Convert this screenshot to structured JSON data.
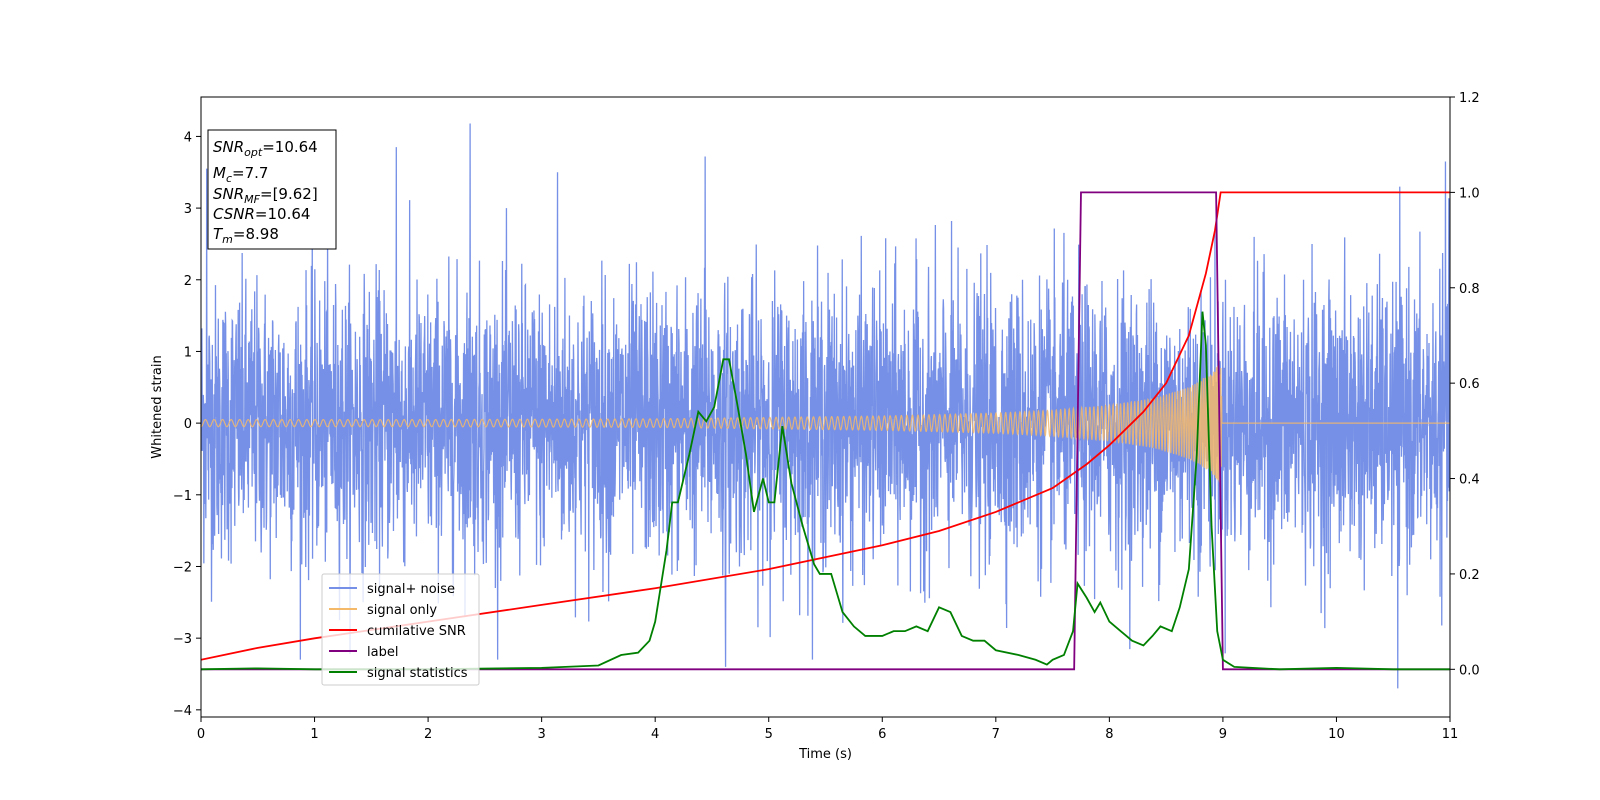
{
  "chart_data": {
    "type": "line",
    "xlabel": "Time (s)",
    "ylabel": "Whitened strain",
    "xlim": [
      0,
      11
    ],
    "ylim_left": [
      -4.1,
      4.55
    ],
    "ylim_right": [
      -0.1,
      1.2
    ],
    "x_ticks": [
      "0",
      "1",
      "2",
      "3",
      "4",
      "5",
      "6",
      "7",
      "8",
      "9",
      "10",
      "11"
    ],
    "y_ticks_left": [
      "−4",
      "−3",
      "−2",
      "−1",
      "0",
      "1",
      "2",
      "3",
      "4"
    ],
    "y_ticks_right": [
      "0.0",
      "0.2",
      "0.4",
      "0.6",
      "0.8",
      "1.0",
      "1.2"
    ],
    "y_tick_values_left": [
      -4,
      -3,
      -2,
      -1,
      0,
      1,
      2,
      3,
      4
    ],
    "y_tick_values_right": [
      0,
      0.2,
      0.4,
      0.6,
      0.8,
      1.0,
      1.2
    ],
    "annotation": {
      "snr_opt": "SNR",
      "snr_opt_sub": "opt",
      "snr_opt_val": "=10.64",
      "mc": "M",
      "mc_sub": "c",
      "mc_val": "=7.7",
      "snr_mf": "SNR",
      "snr_mf_sub": "MF",
      "snr_mf_val": "=[9.62]",
      "csnr": "CSNR",
      "csnr_val": "=10.64",
      "tm": "T",
      "tm_sub": "m",
      "tm_val": "=8.98"
    },
    "legend_position": "lower-left",
    "series": [
      {
        "name": "signal+ noise",
        "color": "#7590e6",
        "axis": "left",
        "description_range": [
          -3.4,
          4.2
        ],
        "peak_spikes": [
          [
            2.37,
            4.18
          ],
          [
            1.72,
            3.85
          ],
          [
            4.44,
            3.72
          ],
          [
            10.96,
            3.65
          ],
          [
            0.05,
            3.55
          ],
          [
            3.14,
            3.5
          ],
          [
            10.54,
            -3.7
          ],
          [
            4.62,
            -3.4
          ]
        ]
      },
      {
        "name": "signal only",
        "color": "#f5b96a",
        "axis": "left",
        "envelope": [
          [
            0,
            0.05
          ],
          [
            2,
            0.05
          ],
          [
            4,
            0.06
          ],
          [
            5,
            0.08
          ],
          [
            6,
            0.1
          ],
          [
            7,
            0.14
          ],
          [
            7.5,
            0.18
          ],
          [
            8,
            0.25
          ],
          [
            8.4,
            0.35
          ],
          [
            8.7,
            0.5
          ],
          [
            8.9,
            0.7
          ],
          [
            8.98,
            0.85
          ],
          [
            9.0,
            0.02
          ],
          [
            11,
            0.02
          ]
        ]
      },
      {
        "name": "cumilative SNR",
        "color": "#ff0000",
        "axis": "right",
        "points": [
          [
            0,
            0.02
          ],
          [
            0.5,
            0.045
          ],
          [
            1,
            0.065
          ],
          [
            2,
            0.1
          ],
          [
            3,
            0.135
          ],
          [
            4,
            0.17
          ],
          [
            5,
            0.21
          ],
          [
            6,
            0.26
          ],
          [
            6.5,
            0.29
          ],
          [
            7,
            0.33
          ],
          [
            7.5,
            0.38
          ],
          [
            7.8,
            0.43
          ],
          [
            8,
            0.47
          ],
          [
            8.3,
            0.54
          ],
          [
            8.5,
            0.6
          ],
          [
            8.7,
            0.7
          ],
          [
            8.85,
            0.83
          ],
          [
            8.93,
            0.92
          ],
          [
            8.98,
            1.0
          ],
          [
            11,
            1.0
          ]
        ]
      },
      {
        "name": "label",
        "color": "#800080",
        "axis": "right",
        "points": [
          [
            0,
            0
          ],
          [
            7.69,
            0
          ],
          [
            7.75,
            1.0
          ],
          [
            8.94,
            1.0
          ],
          [
            9.0,
            0
          ],
          [
            11,
            0
          ]
        ]
      },
      {
        "name": "signal statistics",
        "color": "#008000",
        "axis": "right",
        "points": [
          [
            0,
            0.0
          ],
          [
            0.5,
            0.002
          ],
          [
            1,
            0.0
          ],
          [
            2,
            0.0
          ],
          [
            3,
            0.003
          ],
          [
            3.5,
            0.008
          ],
          [
            3.7,
            0.03
          ],
          [
            3.85,
            0.035
          ],
          [
            3.95,
            0.06
          ],
          [
            4.0,
            0.1
          ],
          [
            4.1,
            0.25
          ],
          [
            4.15,
            0.35
          ],
          [
            4.2,
            0.35
          ],
          [
            4.3,
            0.45
          ],
          [
            4.38,
            0.54
          ],
          [
            4.45,
            0.52
          ],
          [
            4.52,
            0.55
          ],
          [
            4.6,
            0.65
          ],
          [
            4.65,
            0.65
          ],
          [
            4.72,
            0.56
          ],
          [
            4.8,
            0.45
          ],
          [
            4.87,
            0.33
          ],
          [
            4.95,
            0.4
          ],
          [
            5.0,
            0.35
          ],
          [
            5.05,
            0.35
          ],
          [
            5.12,
            0.51
          ],
          [
            5.2,
            0.39
          ],
          [
            5.3,
            0.3
          ],
          [
            5.4,
            0.22
          ],
          [
            5.45,
            0.2
          ],
          [
            5.55,
            0.2
          ],
          [
            5.65,
            0.12
          ],
          [
            5.75,
            0.09
          ],
          [
            5.85,
            0.07
          ],
          [
            6.0,
            0.07
          ],
          [
            6.1,
            0.08
          ],
          [
            6.2,
            0.08
          ],
          [
            6.3,
            0.09
          ],
          [
            6.4,
            0.08
          ],
          [
            6.5,
            0.13
          ],
          [
            6.6,
            0.12
          ],
          [
            6.7,
            0.07
          ],
          [
            6.8,
            0.06
          ],
          [
            6.9,
            0.06
          ],
          [
            7.0,
            0.04
          ],
          [
            7.2,
            0.03
          ],
          [
            7.35,
            0.02
          ],
          [
            7.45,
            0.01
          ],
          [
            7.5,
            0.02
          ],
          [
            7.6,
            0.03
          ],
          [
            7.68,
            0.08
          ],
          [
            7.72,
            0.18
          ],
          [
            7.8,
            0.15
          ],
          [
            7.87,
            0.12
          ],
          [
            7.92,
            0.14
          ],
          [
            8.0,
            0.1
          ],
          [
            8.1,
            0.08
          ],
          [
            8.2,
            0.06
          ],
          [
            8.3,
            0.05
          ],
          [
            8.38,
            0.07
          ],
          [
            8.45,
            0.09
          ],
          [
            8.55,
            0.08
          ],
          [
            8.62,
            0.13
          ],
          [
            8.7,
            0.21
          ],
          [
            8.77,
            0.45
          ],
          [
            8.82,
            0.75
          ],
          [
            8.85,
            0.68
          ],
          [
            8.9,
            0.3
          ],
          [
            8.95,
            0.08
          ],
          [
            9.0,
            0.02
          ],
          [
            9.1,
            0.005
          ],
          [
            9.5,
            0.0
          ],
          [
            10.0,
            0.003
          ],
          [
            10.5,
            0.0
          ],
          [
            11,
            0.0
          ]
        ]
      }
    ]
  }
}
